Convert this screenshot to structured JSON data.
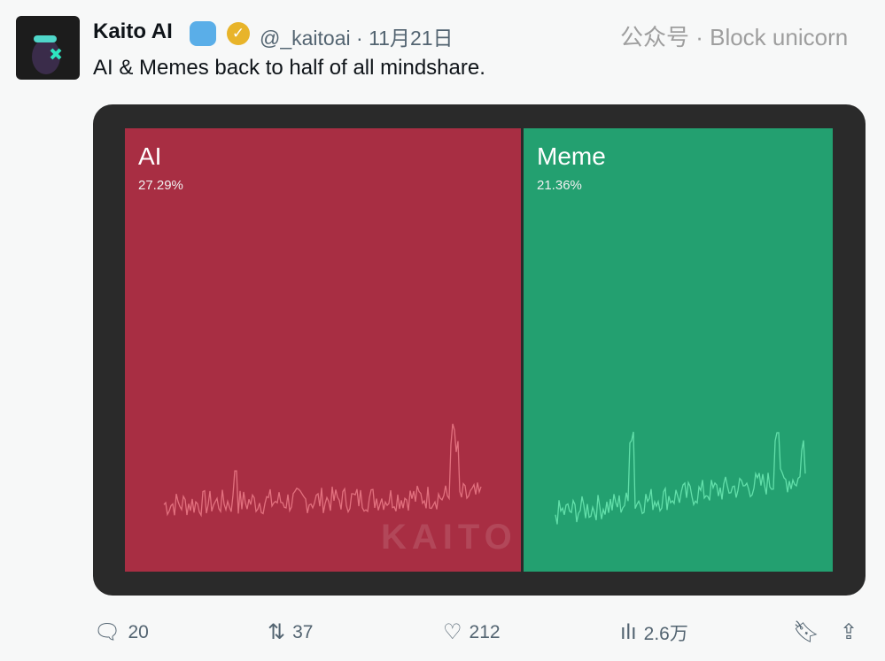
{
  "tweet": {
    "name": "Kaito AI",
    "handle": "@_kaitoai",
    "date": "11月21日",
    "text": "AI & Memes back to half of all mindshare."
  },
  "chart": {
    "tiles": [
      {
        "label": "AI",
        "percent": "27.29%",
        "color": "#a82e43"
      },
      {
        "label": "Meme",
        "percent": "21.36%",
        "color": "#23a070"
      }
    ],
    "watermark": "KAITO"
  },
  "actions": {
    "replies": "20",
    "retweets": "37",
    "likes": "212",
    "views": "2.6万"
  },
  "overlay_watermark": "公众号 · Block unicorn"
}
